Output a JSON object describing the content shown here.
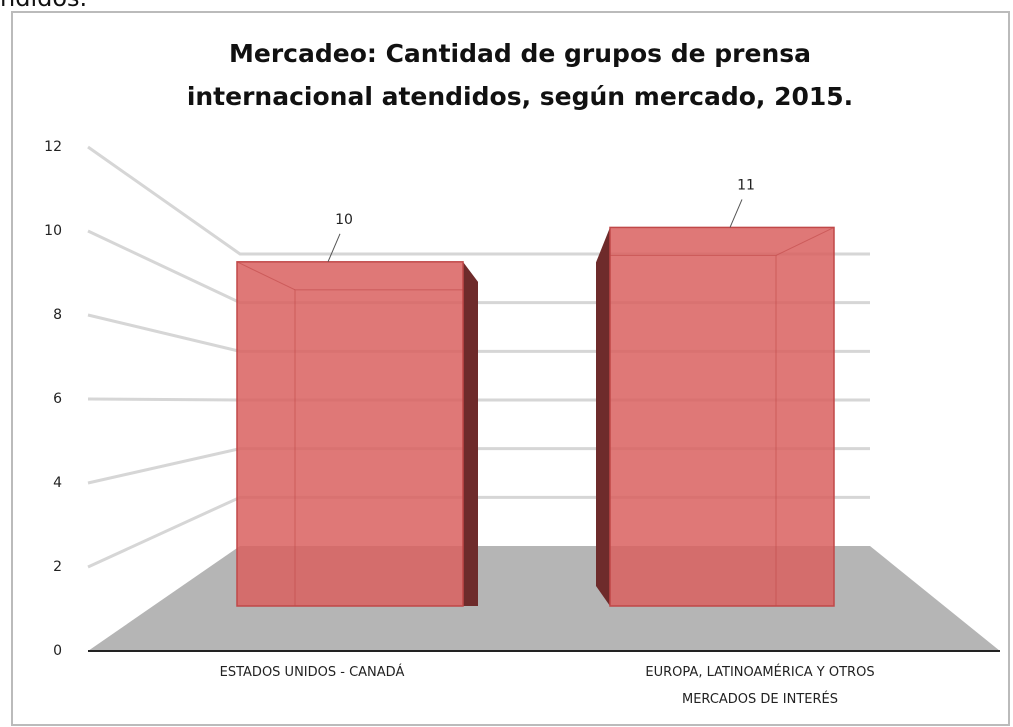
{
  "caption_fragment": "ndidos.",
  "chart_data": {
    "type": "bar3d",
    "title": "Mercadeo: Cantidad de grupos de prensa internacional atendidos, según mercado, 2015.",
    "categories": [
      "ESTADOS UNIDOS - CANADÁ",
      "EUROPA, LATINOAMÉRICA Y OTROS MERCADOS DE INTERÉS"
    ],
    "values": [
      10,
      11
    ],
    "color": "#d9605f",
    "ylim": [
      0,
      12
    ],
    "yticks": [
      0,
      2,
      4,
      6,
      8,
      10,
      12
    ],
    "grid": true
  }
}
